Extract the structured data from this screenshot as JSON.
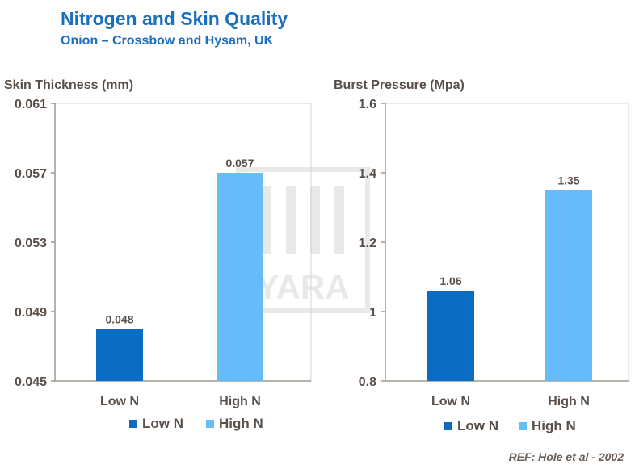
{
  "header": {
    "title": "Nitrogen and Skin Quality",
    "subtitle": "Onion – Crossbow and Hysam, UK"
  },
  "watermark": {
    "text": "YARA"
  },
  "reference": "REF: Hole et al -  2002",
  "colors": {
    "low_n": "#0a6cc2",
    "high_n": "#66bbf9",
    "text": "#5a4f48",
    "title": "#1a6fc0",
    "axis": "#a09890"
  },
  "chart_data": [
    {
      "type": "bar",
      "ylabel": "Skin Thickness (mm)",
      "categories": [
        "Low N",
        "High N"
      ],
      "values": [
        0.048,
        0.057
      ],
      "data_labels": [
        "0.048",
        "0.057"
      ],
      "ylim": [
        0.045,
        0.061
      ],
      "yticks": [
        "0.045",
        "0.049",
        "0.053",
        "0.057",
        "0.061"
      ],
      "legend": [
        "Low N",
        "High N"
      ],
      "legend_position": "bottom",
      "grid": false
    },
    {
      "type": "bar",
      "ylabel": "Burst Pressure (Mpa)",
      "categories": [
        "Low N",
        "High N"
      ],
      "values": [
        1.06,
        1.35
      ],
      "data_labels": [
        "1.06",
        "1.35"
      ],
      "ylim": [
        0.8,
        1.6
      ],
      "yticks": [
        "0.8",
        "1",
        "1.2",
        "1.4",
        "1.6"
      ],
      "legend": [
        "Low N",
        "High N"
      ],
      "legend_position": "bottom",
      "grid": false
    }
  ]
}
